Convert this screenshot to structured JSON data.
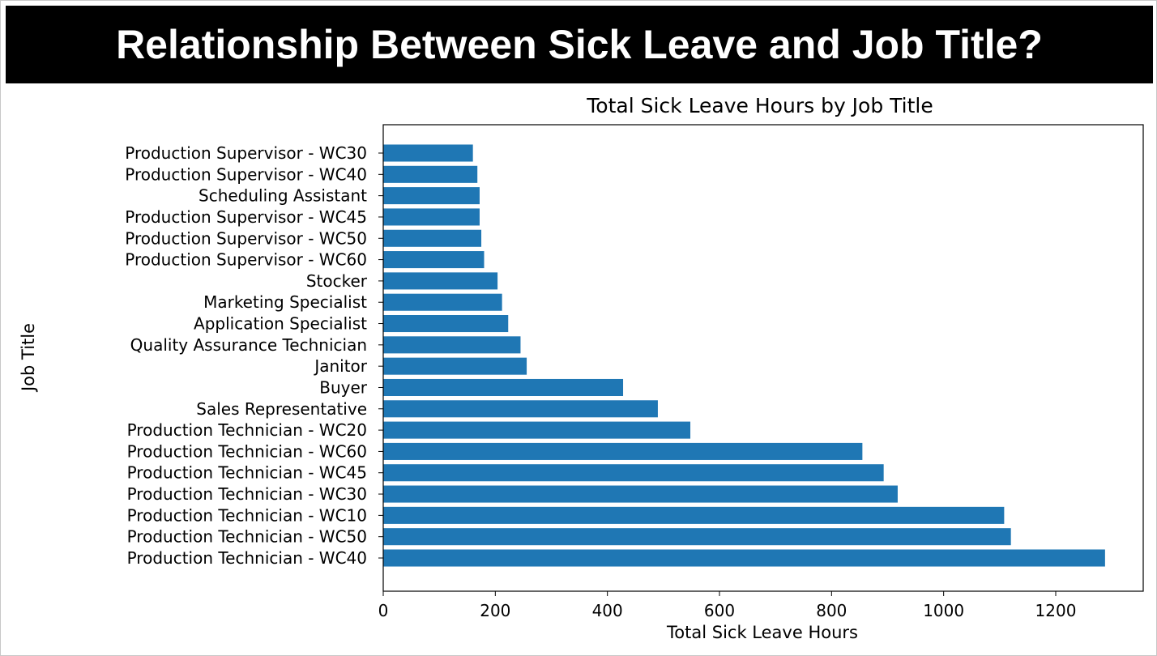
{
  "slide": {
    "heading": "Relationship Between Sick Leave and Job Title?",
    "banner_color": "#000000",
    "heading_color": "#ffffff"
  },
  "chart_data": {
    "type": "bar",
    "orientation": "horizontal",
    "title": "Total Sick Leave Hours by Job Title",
    "xlabel": "Total Sick Leave Hours",
    "ylabel": "Job Title",
    "bar_color": "#1f77b4",
    "xlim": [
      0,
      1350
    ],
    "xticks": [
      0,
      200,
      400,
      600,
      800,
      1000,
      1200
    ],
    "grid": false,
    "legend": "none",
    "categories": [
      "Production Technician - WC40",
      "Production Technician - WC50",
      "Production Technician - WC10",
      "Production Technician - WC30",
      "Production Technician - WC45",
      "Production Technician - WC60",
      "Production Technician - WC20",
      "Sales Representative",
      "Buyer",
      "Janitor",
      "Quality Assurance Technician",
      "Application Specialist",
      "Marketing Specialist",
      "Stocker",
      "Production Supervisor - WC60",
      "Production Supervisor - WC50",
      "Production Supervisor - WC45",
      "Scheduling Assistant",
      "Production Supervisor - WC40",
      "Production Supervisor - WC30"
    ],
    "values": [
      1288,
      1120,
      1108,
      918,
      893,
      855,
      548,
      490,
      428,
      256,
      245,
      223,
      212,
      204,
      180,
      175,
      172,
      172,
      168,
      160
    ]
  }
}
